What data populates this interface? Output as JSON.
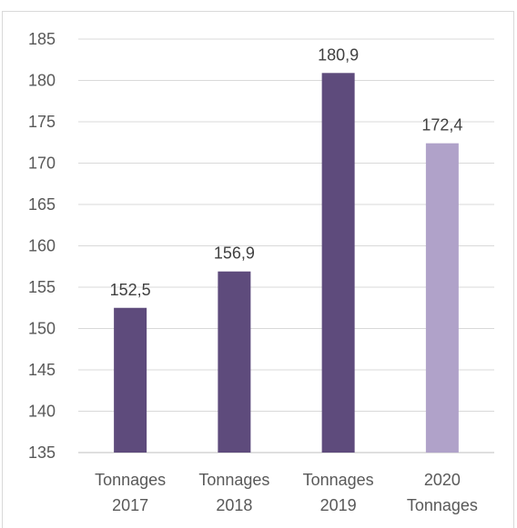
{
  "chart_data": {
    "type": "bar",
    "categories": [
      [
        "Tonnages",
        "2017"
      ],
      [
        "Tonnages",
        "2018"
      ],
      [
        "Tonnages",
        "2019"
      ],
      [
        "2020",
        "Tonnages"
      ]
    ],
    "values": [
      152.5,
      156.9,
      180.9,
      172.4
    ],
    "data_labels": [
      "152,5",
      "156,9",
      "180,9",
      "172,4"
    ],
    "colors": [
      "#5e4b7c",
      "#5e4b7c",
      "#5e4b7c",
      "#b0a2c9"
    ],
    "ylim": [
      135,
      185
    ],
    "yticks": [
      "135",
      "140",
      "145",
      "150",
      "155",
      "160",
      "165",
      "170",
      "175",
      "180",
      "185"
    ],
    "title": "",
    "xlabel": "",
    "ylabel": "",
    "grid": true,
    "legend": "none"
  }
}
